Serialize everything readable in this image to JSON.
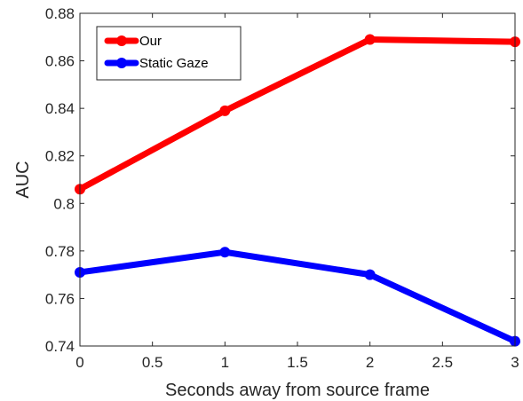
{
  "chart_data": {
    "type": "line",
    "title": "",
    "xlabel": "Seconds away from source frame",
    "ylabel": "AUC",
    "xlim": [
      0,
      3
    ],
    "ylim": [
      0.74,
      0.88
    ],
    "xticks": [
      "0",
      "0.5",
      "1",
      "1.5",
      "2",
      "2.5",
      "3"
    ],
    "yticks": [
      "0.74",
      "0.76",
      "0.78",
      "0.8",
      "0.82",
      "0.84",
      "0.86",
      "0.88"
    ],
    "x": [
      0,
      1,
      2,
      3
    ],
    "series": [
      {
        "name": "Our",
        "color": "#ff0000",
        "values": [
          0.806,
          0.839,
          0.869,
          0.868
        ]
      },
      {
        "name": "Static Gaze",
        "color": "#0000ff",
        "values": [
          0.771,
          0.7795,
          0.77,
          0.742
        ]
      }
    ],
    "grid": false,
    "legend_position": "top-left",
    "box": true
  }
}
